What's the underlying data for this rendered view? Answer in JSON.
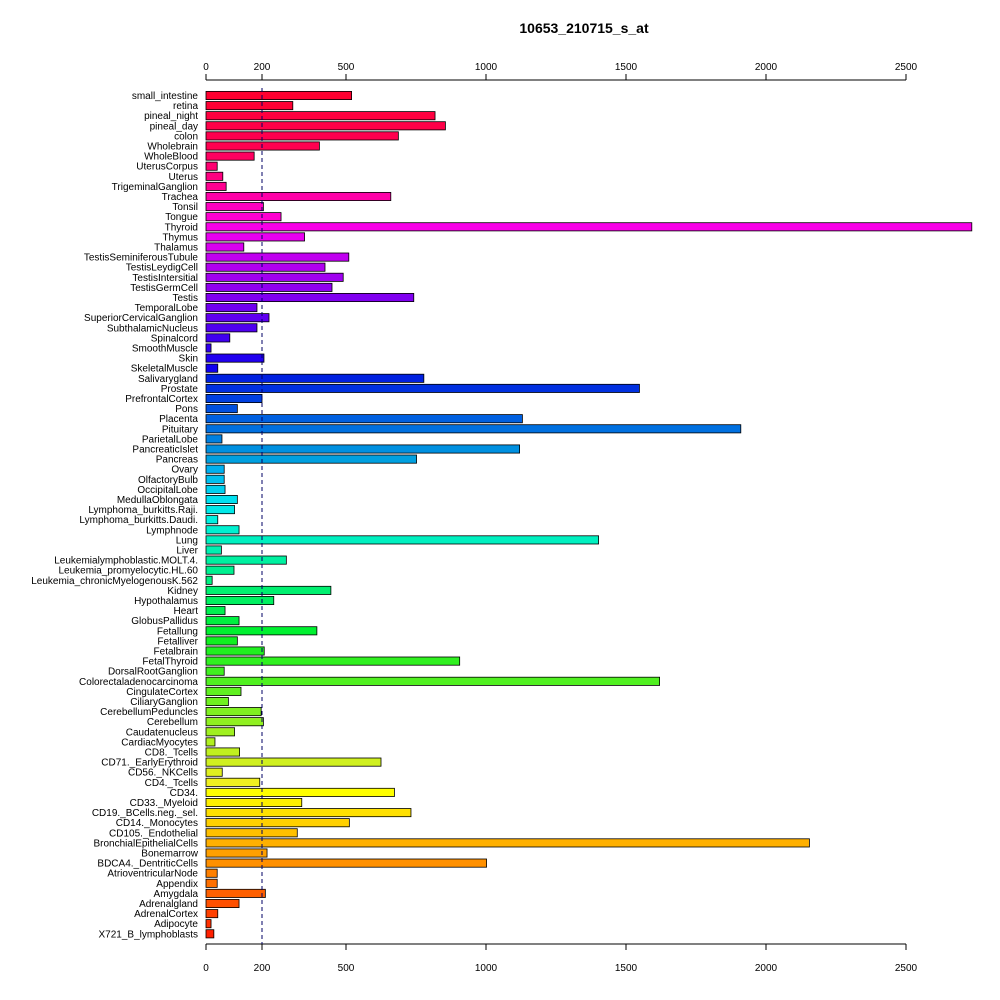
{
  "chart_data": {
    "type": "bar",
    "orientation": "horizontal",
    "title": "10653_210715_s_at",
    "xlabel": "",
    "ylabel": "",
    "xlim": [
      0,
      2750
    ],
    "x_ticks": [
      0,
      200,
      500,
      1000,
      1500,
      2000,
      2500
    ],
    "x_axis_positions": [
      "top",
      "bottom"
    ],
    "reference_line": 200,
    "grid": false,
    "categories": [
      "small_intestine",
      "retina",
      "pineal_night",
      "pineal_day",
      "colon",
      "Wholebrain",
      "WholeBlood",
      "UterusCorpus",
      "Uterus",
      "TrigeminalGanglion",
      "Trachea",
      "Tonsil",
      "Tongue",
      "Thyroid",
      "Thymus",
      "Thalamus",
      "TestisSeminiferousTubule",
      "TestisLeydigCell",
      "TestisIntersitial",
      "TestisGermCell",
      "Testis",
      "TemporalLobe",
      "SuperiorCervicalGanglion",
      "SubthalamicNucleus",
      "Spinalcord",
      "SmoothMuscle",
      "Skin",
      "SkeletalMuscle",
      "Salivarygland",
      "Prostate",
      "PrefrontalCortex",
      "Pons",
      "Placenta",
      "Pituitary",
      "ParietalLobe",
      "PancreaticIslet",
      "Pancreas",
      "Ovary",
      "OlfactoryBulb",
      "OccipitalLobe",
      "MedullaOblongata",
      "Lymphoma_burkitts.Raji.",
      "Lymphoma_burkitts.Daudi.",
      "Lymphnode",
      "Lung",
      "Liver",
      "Leukemialymphoblastic.MOLT.4.",
      "Leukemia_promyelocytic.HL.60",
      "Leukemia_chronicMyelogenousK.562",
      "Kidney",
      "Hypothalamus",
      "Heart",
      "GlobusPallidus",
      "Fetallung",
      "Fetalliver",
      "Fetalbrain",
      "FetalThyroid",
      "DorsalRootGanglion",
      "Colorectaladenocarcinoma",
      "CingulateCortex",
      "CiliaryGanglion",
      "CerebellumPeduncles",
      "Cerebellum",
      "Caudatenucleus",
      "CardiacMyocytes",
      "CD8._Tcells",
      "CD71._EarlyErythroid",
      "CD56._NKCells",
      "CD4._Tcells",
      "CD34.",
      "CD33._Myeloid",
      "CD19._BCells.neg._sel.",
      "CD14._Monocytes",
      "CD105._Endothelial",
      "BronchialEpithelialCells",
      "Bonemarrow",
      "BDCA4._DentriticCells",
      "AtrioventricularNode",
      "Appendix",
      "Amygdala",
      "Adrenalgland",
      "AdrenalCortex",
      "Adipocyte",
      "X721_B_lymphoblasts"
    ],
    "values": [
      520,
      310,
      818,
      855,
      687,
      405,
      172,
      40,
      60,
      72,
      660,
      205,
      268,
      2735,
      352,
      135,
      510,
      425,
      490,
      450,
      742,
      182,
      225,
      182,
      85,
      18,
      207,
      42,
      778,
      1548,
      200,
      112,
      1130,
      1910,
      57,
      1120,
      752,
      65,
      65,
      68,
      112,
      102,
      42,
      118,
      1402,
      55,
      287,
      100,
      22,
      446,
      242,
      68,
      118,
      396,
      112,
      208,
      906,
      65,
      1620,
      125,
      80,
      197,
      205,
      102,
      32,
      120,
      625,
      58,
      192,
      673,
      342,
      732,
      512,
      326,
      2155,
      218,
      1002,
      40,
      40,
      212,
      118,
      42,
      18,
      28
    ],
    "colors": [
      "#ff0030",
      "#ff0034",
      "#ff0040",
      "#ff0048",
      "#ff004e",
      "#ff0050",
      "#ff0060",
      "#ff0070",
      "#ff0080",
      "#ff0090",
      "#ff00a8",
      "#ff00c0",
      "#ff00d0",
      "#f800e8",
      "#e800f0",
      "#d800f0",
      "#c000f0",
      "#b000f0",
      "#a000f0",
      "#9000f0",
      "#8000f0",
      "#7000f0",
      "#6000f0",
      "#5000f0",
      "#4000f0",
      "#3000f0",
      "#2000f0",
      "#1000f0",
      "#0020e0",
      "#0030e0",
      "#0040e0",
      "#0050e0",
      "#0060e0",
      "#0070e0",
      "#0080e0",
      "#0090e0",
      "#00a0e0",
      "#00b0f0",
      "#00c0f0",
      "#00d0f0",
      "#00e0f0",
      "#00e8e8",
      "#00f0e0",
      "#00f0d0",
      "#00f0c0",
      "#00f0b0",
      "#00f0a0",
      "#00f090",
      "#00f080",
      "#00f070",
      "#00f060",
      "#00f050",
      "#00f040",
      "#00f030",
      "#10f020",
      "#20f020",
      "#30f020",
      "#40f020",
      "#50f020",
      "#60f020",
      "#70f020",
      "#80f020",
      "#90f020",
      "#a0f020",
      "#b0f020",
      "#c0f020",
      "#d0f020",
      "#e0f020",
      "#f0f020",
      "#ffff00",
      "#fff000",
      "#ffe000",
      "#ffd000",
      "#ffc000",
      "#ffb000",
      "#ffa000",
      "#ff9000",
      "#ff8000",
      "#ff7000",
      "#ff6000",
      "#ff5000",
      "#ff4000",
      "#ff3000",
      "#ff2000"
    ]
  }
}
